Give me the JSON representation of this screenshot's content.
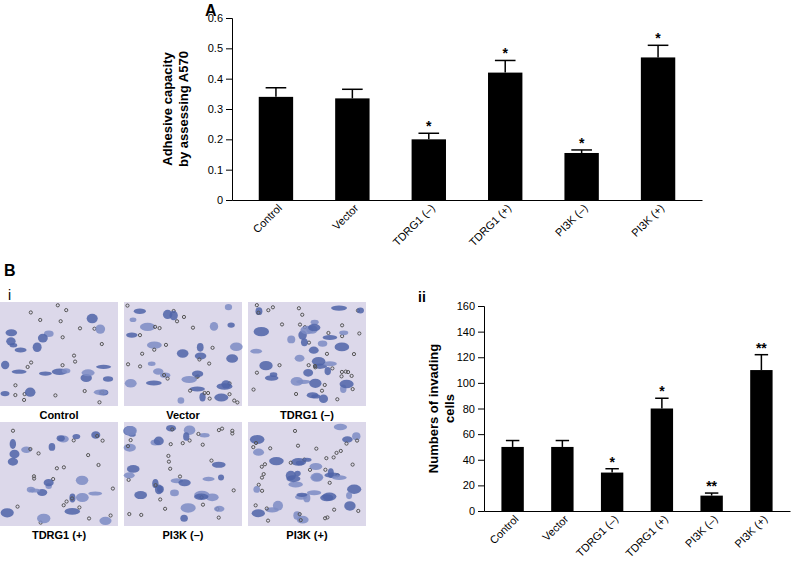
{
  "chart_data": [
    {
      "type": "bar",
      "title": "A",
      "ylabel": "Adhesive capacity\nby assessing A570",
      "categories": [
        "Control",
        "Vector",
        "TDRG1 (–)",
        "TDRG1 (+)",
        "PI3K (–)",
        "PI3K (+)"
      ],
      "values": [
        0.34,
        0.335,
        0.2,
        0.42,
        0.155,
        0.47
      ],
      "errors": [
        0.03,
        0.03,
        0.02,
        0.04,
        0.01,
        0.04
      ],
      "annotations": [
        null,
        null,
        "*",
        "*",
        "*",
        "*"
      ],
      "color": "#000000",
      "ylim": [
        0,
        0.6
      ],
      "yticks": [
        0,
        0.1,
        0.2,
        0.3,
        0.4,
        0.5,
        0.6
      ]
    },
    {
      "type": "bar",
      "title": "ii",
      "ylabel": "Numbers of invading\ncells",
      "categories": [
        "Control",
        "Vector",
        "TDRG1 (–)",
        "TDRG1 (+)",
        "PI3K (–)",
        "PI3K (+)"
      ],
      "values": [
        50,
        50,
        30,
        80,
        12,
        110
      ],
      "errors": [
        5,
        5,
        3,
        8,
        2,
        12
      ],
      "annotations": [
        null,
        null,
        "*",
        "*",
        "**",
        "**"
      ],
      "color": "#000000",
      "ylim": [
        0,
        160
      ],
      "yticks": [
        0,
        20,
        40,
        60,
        80,
        100,
        120,
        140,
        160
      ]
    }
  ],
  "images": {
    "panel_label": "B",
    "sub_label": "i",
    "captions": [
      "Control",
      "Vector",
      "TDRG1 (–)",
      "TDRG1 (+)",
      "PI3K (–)",
      "PI3K (+)"
    ]
  }
}
